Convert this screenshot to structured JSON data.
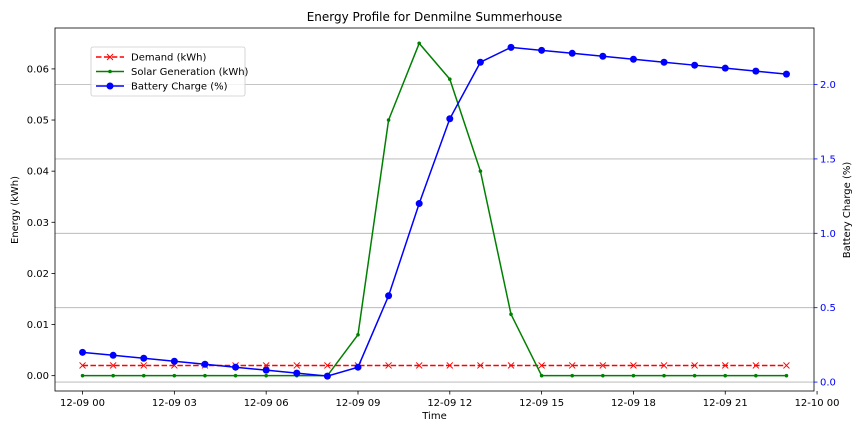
{
  "chart_data": {
    "type": "line",
    "title": "Energy Profile for Denmilne Summerhouse",
    "xlabel": "Time",
    "ylabel_left": "Energy (kWh)",
    "ylabel_right": "Battery Charge (%)",
    "x": [
      "12-09 00:00",
      "12-09 01:00",
      "12-09 02:00",
      "12-09 03:00",
      "12-09 04:00",
      "12-09 05:00",
      "12-09 06:00",
      "12-09 07:00",
      "12-09 08:00",
      "12-09 09:00",
      "12-09 10:00",
      "12-09 11:00",
      "12-09 12:00",
      "12-09 13:00",
      "12-09 14:00",
      "12-09 15:00",
      "12-09 16:00",
      "12-09 17:00",
      "12-09 18:00",
      "12-09 19:00",
      "12-09 20:00",
      "12-09 21:00",
      "12-09 22:00",
      "12-09 23:00"
    ],
    "x_ticks": [
      "12-09 00",
      "12-09 03",
      "12-09 06",
      "12-09 09",
      "12-09 12",
      "12-09 15",
      "12-09 18",
      "12-09 21",
      "12-10 00"
    ],
    "xlim_hours": [
      -0.9,
      23.9
    ],
    "ylim_left": [
      -0.003,
      0.068
    ],
    "yticks_left": [
      "0.00",
      "0.01",
      "0.02",
      "0.03",
      "0.04",
      "0.05",
      "0.06"
    ],
    "ylim_right": [
      -0.06,
      2.38
    ],
    "yticks_right": [
      "0.0",
      "0.5",
      "1.0",
      "1.5",
      "2.0"
    ],
    "grid": "horizontal lines at right-axis ticks",
    "legend_position": "upper-left",
    "series": [
      {
        "name": "Demand (kWh)",
        "axis": "left",
        "color": "#ff0000",
        "linestyle": "dashed",
        "marker": "x",
        "values": [
          0.002,
          0.002,
          0.002,
          0.002,
          0.002,
          0.002,
          0.002,
          0.002,
          0.002,
          0.002,
          0.002,
          0.002,
          0.002,
          0.002,
          0.002,
          0.002,
          0.002,
          0.002,
          0.002,
          0.002,
          0.002,
          0.002,
          0.002,
          0.002
        ]
      },
      {
        "name": "Solar Generation (kWh)",
        "axis": "left",
        "color": "#008000",
        "linestyle": "solid",
        "marker": "dot",
        "values": [
          0,
          0,
          0,
          0,
          0,
          0,
          0,
          0,
          0,
          0.008,
          0.05,
          0.065,
          0.058,
          0.04,
          0.012,
          0,
          0,
          0,
          0,
          0,
          0,
          0,
          0,
          0
        ]
      },
      {
        "name": "Battery Charge (%)",
        "axis": "right",
        "color": "#0000ff",
        "linestyle": "solid",
        "marker": "circle",
        "values": [
          0.2,
          0.18,
          0.16,
          0.14,
          0.12,
          0.1,
          0.08,
          0.06,
          0.04,
          0.1,
          0.58,
          1.2,
          1.77,
          2.15,
          2.25,
          2.23,
          2.21,
          2.19,
          2.17,
          2.15,
          2.13,
          2.11,
          2.09,
          2.07
        ]
      }
    ]
  }
}
